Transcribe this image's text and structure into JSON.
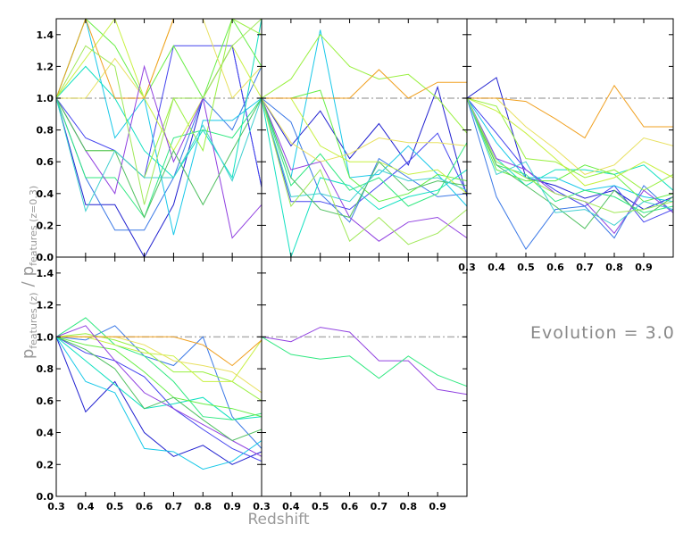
{
  "chart_data": {
    "type": "line",
    "layout": "2x3 grid of panels (5 used)",
    "xlabel": "Redshift",
    "ylabel": {
      "main": "p",
      "main_sub": "features (z)",
      "sep": "/",
      "denom": "p",
      "denom_sub": "features (z=0.3)"
    },
    "annotation": "Evolution = 3.0",
    "xlim": [
      0.3,
      1.0
    ],
    "ylim": [
      0.0,
      1.5
    ],
    "x_ticks": [
      0.3,
      0.4,
      0.5,
      0.6,
      0.7,
      0.8,
      0.9
    ],
    "x_tick_labels": [
      "0.3",
      "0.4",
      "0.5",
      "0.6",
      "0.7",
      "0.8",
      "0.9"
    ],
    "y_ticks": [
      0.0,
      0.2,
      0.4,
      0.6,
      0.8,
      1.0,
      1.2,
      1.4
    ],
    "y_tick_labels": [
      "0.0",
      "0.2",
      "0.4",
      "0.6",
      "0.8",
      "1.0",
      "1.2",
      "1.4"
    ],
    "reference_line": {
      "y": 1.0,
      "style": "dash-dot",
      "color": "#b0b0b0"
    },
    "x": [
      0.3,
      0.4,
      0.5,
      0.6,
      0.7,
      0.8,
      0.9,
      1.0
    ],
    "panels": [
      {
        "series": [
          {
            "color": "#2020d0",
            "values": [
              1.0,
              0.33,
              0.33,
              0.0,
              0.33,
              1.0,
              1.33,
              0.44
            ]
          },
          {
            "color": "#4444ee",
            "values": [
              1.0,
              0.75,
              0.67,
              0.5,
              1.33,
              1.33,
              1.33,
              0.44
            ]
          },
          {
            "color": "#3a78e6",
            "values": [
              1.0,
              0.5,
              0.17,
              0.17,
              0.5,
              1.0,
              0.8,
              1.2
            ]
          },
          {
            "color": "#18c8e8",
            "values": [
              1.0,
              1.5,
              0.75,
              1.0,
              0.14,
              0.86,
              0.86,
              1.0
            ]
          },
          {
            "color": "#10e0c0",
            "values": [
              1.0,
              1.2,
              1.0,
              0.67,
              0.5,
              0.8,
              0.5,
              1.5
            ]
          },
          {
            "color": "#30e880",
            "values": [
              1.0,
              0.5,
              0.5,
              0.25,
              0.75,
              0.8,
              0.75,
              1.0
            ]
          },
          {
            "color": "#66ee44",
            "values": [
              1.0,
              1.5,
              1.33,
              1.0,
              1.33,
              1.0,
              1.5,
              1.2
            ]
          },
          {
            "color": "#99f040",
            "values": [
              1.0,
              0.67,
              0.67,
              0.5,
              1.0,
              0.67,
              1.5,
              1.4
            ]
          },
          {
            "color": "#c8f040",
            "values": [
              1.0,
              1.25,
              1.5,
              1.0,
              0.67,
              1.0,
              1.33,
              1.0
            ]
          },
          {
            "color": "#e8e060",
            "values": [
              1.0,
              1.0,
              1.25,
              1.0,
              1.5,
              1.5,
              1.0,
              1.2
            ]
          },
          {
            "color": "#f0a020",
            "values": [
              1.0,
              1.5,
              1.0,
              1.0,
              1.5,
              1.5,
              1.5,
              1.5
            ]
          },
          {
            "color": "#9040e0",
            "values": [
              1.0,
              0.67,
              0.4,
              1.2,
              0.6,
              1.0,
              0.12,
              0.33
            ]
          },
          {
            "color": "#50c060",
            "values": [
              1.0,
              0.67,
              0.67,
              0.25,
              0.67,
              0.33,
              0.67,
              1.0
            ]
          },
          {
            "color": "#40d0d0",
            "values": [
              1.0,
              0.29,
              0.67,
              0.5,
              0.5,
              0.83,
              0.48,
              1.0
            ]
          },
          {
            "color": "#a0e858",
            "values": [
              1.0,
              1.33,
              1.2,
              0.33,
              1.0,
              1.0,
              1.33,
              1.5
            ]
          }
        ]
      },
      {
        "series": [
          {
            "color": "#2020d0",
            "values": [
              1.0,
              0.7,
              0.92,
              0.62,
              0.84,
              0.58,
              1.07,
              0.38
            ]
          },
          {
            "color": "#4444ee",
            "values": [
              1.0,
              0.35,
              0.35,
              0.3,
              0.45,
              0.6,
              0.78,
              0.4
            ]
          },
          {
            "color": "#3a78e6",
            "values": [
              1.0,
              0.85,
              0.4,
              0.22,
              0.62,
              0.5,
              0.38,
              0.4
            ]
          },
          {
            "color": "#18c8e8",
            "values": [
              1.0,
              0.5,
              1.43,
              0.5,
              0.52,
              0.7,
              0.52,
              0.32
            ]
          },
          {
            "color": "#10e0c0",
            "values": [
              1.0,
              0.0,
              0.5,
              0.45,
              0.3,
              0.38,
              0.42,
              0.55
            ]
          },
          {
            "color": "#30e880",
            "values": [
              1.0,
              0.45,
              0.65,
              0.42,
              0.5,
              0.32,
              0.4,
              0.72
            ]
          },
          {
            "color": "#66ee44",
            "values": [
              1.0,
              1.0,
              1.05,
              0.5,
              0.35,
              0.4,
              0.52,
              0.48
            ]
          },
          {
            "color": "#99f040",
            "values": [
              1.0,
              1.12,
              1.4,
              1.2,
              1.12,
              1.15,
              1.0,
              0.78
            ]
          },
          {
            "color": "#c8f040",
            "values": [
              1.0,
              1.0,
              0.7,
              0.6,
              0.6,
              0.52,
              0.55,
              0.4
            ]
          },
          {
            "color": "#e8e060",
            "values": [
              1.0,
              0.72,
              0.6,
              0.65,
              0.75,
              0.72,
              0.72,
              0.7
            ]
          },
          {
            "color": "#f0a020",
            "values": [
              1.0,
              1.0,
              1.0,
              1.0,
              1.18,
              1.0,
              1.1,
              1.1
            ]
          },
          {
            "color": "#9040e0",
            "values": [
              1.0,
              0.55,
              0.6,
              0.25,
              0.1,
              0.22,
              0.25,
              0.12
            ]
          },
          {
            "color": "#50c060",
            "values": [
              1.0,
              0.5,
              0.3,
              0.25,
              0.6,
              0.42,
              0.48,
              0.45
            ]
          },
          {
            "color": "#40d0d0",
            "values": [
              1.0,
              0.38,
              0.4,
              0.35,
              0.55,
              0.48,
              0.5,
              0.42
            ]
          },
          {
            "color": "#a0e858",
            "values": [
              1.0,
              0.32,
              0.55,
              0.1,
              0.25,
              0.08,
              0.15,
              0.3
            ]
          }
        ]
      },
      {
        "series": [
          {
            "color": "#2020d0",
            "values": [
              1.0,
              1.13,
              0.5,
              0.45,
              0.37,
              0.42,
              0.3,
              0.38
            ]
          },
          {
            "color": "#4444ee",
            "values": [
              1.0,
              0.78,
              0.55,
              0.42,
              0.32,
              0.45,
              0.22,
              0.3
            ]
          },
          {
            "color": "#3a78e6",
            "values": [
              1.0,
              0.38,
              0.05,
              0.3,
              0.32,
              0.12,
              0.45,
              0.28
            ]
          },
          {
            "color": "#18c8e8",
            "values": [
              1.0,
              0.72,
              0.5,
              0.5,
              0.42,
              0.45,
              0.38,
              0.35
            ]
          },
          {
            "color": "#10e0c0",
            "values": [
              1.0,
              0.62,
              0.45,
              0.55,
              0.55,
              0.52,
              0.58,
              0.42
            ]
          },
          {
            "color": "#30e880",
            "values": [
              1.0,
              0.58,
              0.52,
              0.35,
              0.42,
              0.38,
              0.28,
              0.32
            ]
          },
          {
            "color": "#66ee44",
            "values": [
              1.0,
              0.55,
              0.48,
              0.48,
              0.58,
              0.52,
              0.35,
              0.4
            ]
          },
          {
            "color": "#99f040",
            "values": [
              1.0,
              0.95,
              0.62,
              0.6,
              0.5,
              0.55,
              0.42,
              0.52
            ]
          },
          {
            "color": "#c8f040",
            "values": [
              1.0,
              0.92,
              0.78,
              0.62,
              0.45,
              0.5,
              0.6,
              0.5
            ]
          },
          {
            "color": "#e8e060",
            "values": [
              1.0,
              1.0,
              0.82,
              0.68,
              0.52,
              0.58,
              0.75,
              0.7
            ]
          },
          {
            "color": "#f0a020",
            "values": [
              1.0,
              1.0,
              0.98,
              0.87,
              0.75,
              1.08,
              0.82,
              0.82
            ]
          },
          {
            "color": "#9040e0",
            "values": [
              1.0,
              0.62,
              0.55,
              0.4,
              0.35,
              0.15,
              0.42,
              0.28
            ]
          },
          {
            "color": "#50c060",
            "values": [
              1.0,
              0.58,
              0.45,
              0.32,
              0.18,
              0.42,
              0.25,
              0.38
            ]
          },
          {
            "color": "#40d0d0",
            "values": [
              1.0,
              0.52,
              0.6,
              0.28,
              0.3,
              0.2,
              0.35,
              0.3
            ]
          },
          {
            "color": "#a0e858",
            "values": [
              1.0,
              0.6,
              0.5,
              0.4,
              0.35,
              0.28,
              0.3,
              0.35
            ]
          }
        ]
      },
      {
        "series": [
          {
            "color": "#2020d0",
            "values": [
              1.0,
              0.53,
              0.72,
              0.4,
              0.25,
              0.32,
              0.2,
              0.28
            ]
          },
          {
            "color": "#4444ee",
            "values": [
              1.0,
              0.9,
              0.85,
              0.75,
              0.55,
              0.42,
              0.3,
              0.22
            ]
          },
          {
            "color": "#3a78e6",
            "values": [
              1.0,
              0.98,
              1.07,
              0.88,
              0.82,
              1.0,
              0.5,
              0.3
            ]
          },
          {
            "color": "#18c8e8",
            "values": [
              1.0,
              0.72,
              0.65,
              0.3,
              0.28,
              0.17,
              0.22,
              0.35
            ]
          },
          {
            "color": "#10e0c0",
            "values": [
              1.0,
              0.85,
              0.7,
              0.55,
              0.58,
              0.62,
              0.48,
              0.5
            ]
          },
          {
            "color": "#30e880",
            "values": [
              1.0,
              1.12,
              0.95,
              0.88,
              0.72,
              0.5,
              0.48,
              0.52
            ]
          },
          {
            "color": "#66ee44",
            "values": [
              1.0,
              0.95,
              0.92,
              0.78,
              0.62,
              0.58,
              0.55,
              0.5
            ]
          },
          {
            "color": "#99f040",
            "values": [
              1.0,
              1.02,
              0.98,
              0.92,
              0.78,
              0.78,
              0.72,
              0.6
            ]
          },
          {
            "color": "#c8f040",
            "values": [
              1.0,
              1.0,
              0.95,
              0.9,
              0.88,
              0.72,
              0.72,
              0.98
            ]
          },
          {
            "color": "#e8e060",
            "values": [
              1.0,
              1.0,
              1.0,
              0.95,
              0.85,
              0.82,
              0.78,
              0.65
            ]
          },
          {
            "color": "#f0a020",
            "values": [
              1.0,
              1.0,
              1.0,
              1.0,
              1.0,
              0.95,
              0.82,
              0.98
            ]
          },
          {
            "color": "#9040e0",
            "values": [
              1.0,
              1.07,
              0.85,
              0.65,
              0.55,
              0.45,
              0.35,
              0.25
            ]
          },
          {
            "color": "#50c060",
            "values": [
              1.0,
              0.92,
              0.8,
              0.55,
              0.62,
              0.48,
              0.35,
              0.42
            ]
          }
        ]
      },
      {
        "series": [
          {
            "color": "#9040e0",
            "values": [
              1.0,
              0.97,
              1.06,
              1.03,
              0.85,
              0.85,
              0.67,
              0.64
            ]
          },
          {
            "color": "#30e880",
            "values": [
              1.0,
              0.89,
              0.86,
              0.88,
              0.74,
              0.88,
              0.76,
              0.69
            ]
          }
        ]
      }
    ]
  }
}
